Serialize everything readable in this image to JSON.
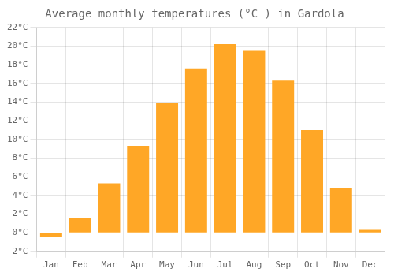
{
  "chart_data": {
    "type": "bar",
    "title": "Average monthly temperatures (°C ) in Gardola",
    "categories": [
      "Jan",
      "Feb",
      "Mar",
      "Apr",
      "May",
      "Jun",
      "Jul",
      "Aug",
      "Sep",
      "Oct",
      "Nov",
      "Dec"
    ],
    "values": [
      -0.5,
      1.6,
      5.3,
      9.3,
      13.9,
      17.6,
      20.2,
      19.5,
      16.3,
      11.0,
      4.8,
      0.3
    ],
    "color": "#FFA726",
    "ylim": [
      -2,
      22
    ],
    "yticks": [
      {
        "value": -2,
        "label": "-2°C"
      },
      {
        "value": 0,
        "label": "0°C"
      },
      {
        "value": 2,
        "label": "2°C"
      },
      {
        "value": 4,
        "label": "4°C"
      },
      {
        "value": 6,
        "label": "6°C"
      },
      {
        "value": 8,
        "label": "8°C"
      },
      {
        "value": 10,
        "label": "10°C"
      },
      {
        "value": 12,
        "label": "12°C"
      },
      {
        "value": 14,
        "label": "14°C"
      },
      {
        "value": 16,
        "label": "16°C"
      },
      {
        "value": 18,
        "label": "18°C"
      },
      {
        "value": 20,
        "label": "20°C"
      },
      {
        "value": 22,
        "label": "22°C"
      }
    ],
    "grid": true
  }
}
